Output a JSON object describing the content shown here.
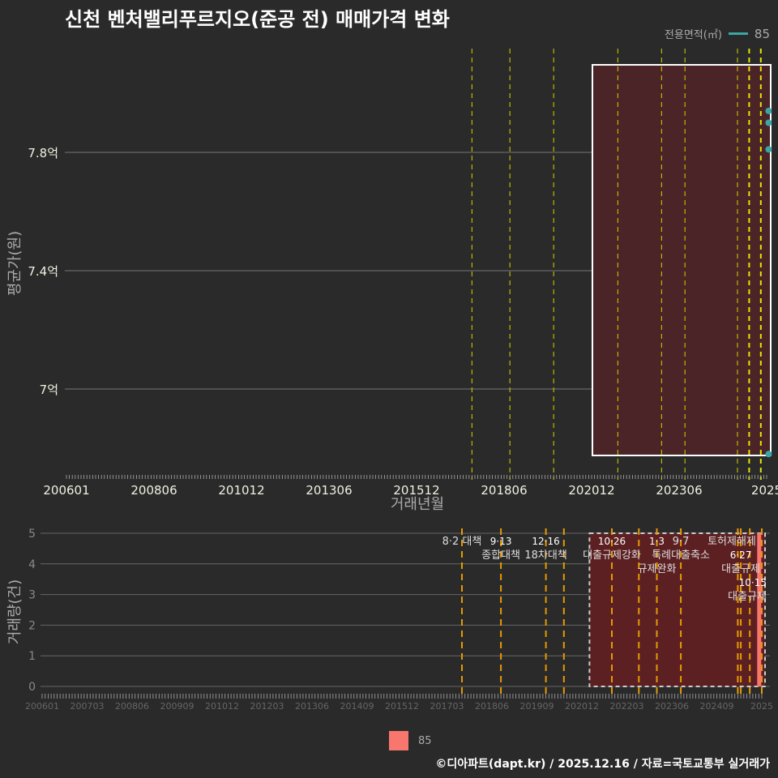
{
  "title": "신천 벤처밸리푸르지오(준공 전) 매매가격 변화",
  "legend": {
    "title": "전용면적(㎡)",
    "item": "85",
    "color": "#3aa6a6"
  },
  "bottom_legend": {
    "item": "85",
    "color": "#f8766d"
  },
  "credit": "©디아파트(dapt.kr) / 2025.12.16 / 자료=국토교통부 실거래가",
  "chart_data": [
    {
      "type": "line",
      "ylabel": "평균가(원)",
      "xlabel": "거래년월",
      "yticks": [
        {
          "v": 7.0,
          "label": "7억"
        },
        {
          "v": 7.4,
          "label": "7.4억"
        },
        {
          "v": 7.8,
          "label": "7.8억"
        }
      ],
      "xticks": [
        {
          "m": 0,
          "label": "200601"
        },
        {
          "m": 30,
          "label": "200806"
        },
        {
          "m": 60,
          "label": "201012"
        },
        {
          "m": 90,
          "label": "201306"
        },
        {
          "m": 120,
          "label": "201512"
        },
        {
          "m": 150,
          "label": "201806"
        },
        {
          "m": 180,
          "label": "202012"
        },
        {
          "m": 210,
          "label": "202306"
        },
        {
          "m": 240,
          "label": "2025"
        }
      ],
      "series": [
        {
          "name": "85",
          "points": [
            {
              "m": 239,
              "v": 7.94
            },
            {
              "m": 239,
              "v": 7.9
            },
            {
              "m": 239,
              "v": 7.81
            },
            {
              "m": 239,
              "v": 6.78
            }
          ]
        }
      ],
      "event_months": [
        139,
        152,
        167,
        189,
        204,
        212,
        230,
        234,
        238
      ],
      "highlight_months": [
        180,
        240
      ]
    },
    {
      "type": "bar",
      "ylabel": "거래량(건)",
      "yticks": [
        0,
        1,
        2,
        3,
        4,
        5
      ],
      "xticks": [
        {
          "m": 0,
          "label": "200601"
        },
        {
          "m": 15,
          "label": "200703"
        },
        {
          "m": 30,
          "label": "200806"
        },
        {
          "m": 45,
          "label": "200909"
        },
        {
          "m": 60,
          "label": "201012"
        },
        {
          "m": 75,
          "label": "201203"
        },
        {
          "m": 90,
          "label": "201306"
        },
        {
          "m": 105,
          "label": "201409"
        },
        {
          "m": 120,
          "label": "201512"
        },
        {
          "m": 135,
          "label": "201703"
        },
        {
          "m": 150,
          "label": "201806"
        },
        {
          "m": 165,
          "label": "201909"
        },
        {
          "m": 180,
          "label": "202012"
        },
        {
          "m": 195,
          "label": "202203"
        },
        {
          "m": 210,
          "label": "202306"
        },
        {
          "m": 225,
          "label": "202409"
        },
        {
          "m": 240,
          "label": "2025"
        }
      ],
      "bars": [
        {
          "m": 239,
          "v": 5,
          "name": "85"
        }
      ],
      "event_months": [
        140,
        153,
        168,
        174,
        190,
        199,
        205,
        213,
        232,
        233,
        236,
        240
      ],
      "highlight_months": [
        182,
        240
      ],
      "annotations": [
        {
          "m": 140,
          "row": 1,
          "label": "8·2 대책"
        },
        {
          "m": 153,
          "row": 0,
          "label": "9·13"
        },
        {
          "m": 153,
          "row": 1,
          "label": "종합대책"
        },
        {
          "m": 168,
          "row": 0,
          "label": "12·16"
        },
        {
          "m": 168,
          "row": 1,
          "label": "18차대책"
        },
        {
          "m": 190,
          "row": 0,
          "label": "10·26"
        },
        {
          "m": 190,
          "row": 1,
          "label": "대출규제강화"
        },
        {
          "m": 205,
          "row": 0,
          "label": "1·3"
        },
        {
          "m": 205,
          "row": 1,
          "label": "규제완화"
        },
        {
          "m": 213,
          "row": 1,
          "label": "9·7"
        },
        {
          "m": 213,
          "row": 2,
          "label": "특례대출축소"
        },
        {
          "m": 230,
          "row": 2,
          "label": "토허제해제"
        },
        {
          "m": 233,
          "row": 0,
          "label": "6·27"
        },
        {
          "m": 233,
          "row": 1,
          "label": "대출규제"
        },
        {
          "m": 237,
          "row": 0,
          "label": "10·15"
        },
        {
          "m": 237,
          "row": 1,
          "label": "대출규제"
        }
      ]
    }
  ]
}
